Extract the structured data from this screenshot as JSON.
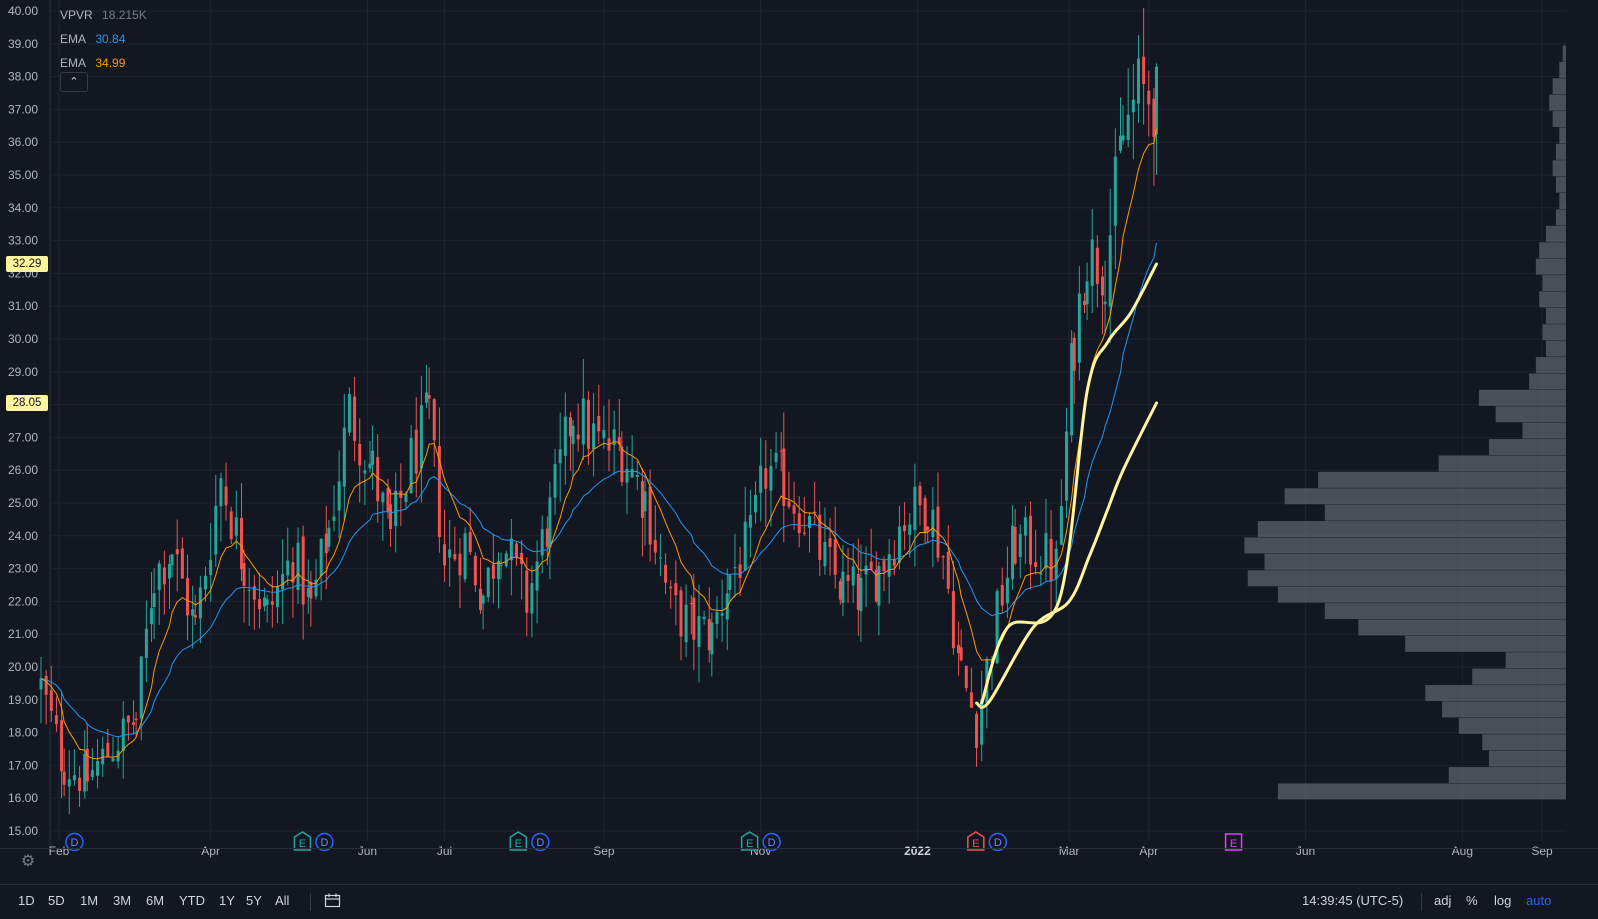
{
  "legend": {
    "vpvr": {
      "name": "VPVR",
      "value": "18.215K",
      "color": "#787b86"
    },
    "ema1": {
      "name": "EMA",
      "value": "30.84",
      "color": "#2196f3"
    },
    "ema2": {
      "name": "EMA",
      "value": "34.99",
      "color": "#ff9800"
    }
  },
  "collapse_icon": "chevron-up-icon",
  "badges": [
    {
      "value": "32.29",
      "price": 32.29
    },
    {
      "value": "28.05",
      "price": 28.05
    }
  ],
  "bottom_bar": {
    "ranges": [
      "1D",
      "5D",
      "1M",
      "3M",
      "6M",
      "YTD",
      "1Y",
      "5Y",
      "All"
    ],
    "time": "14:39:45 (UTC-5)",
    "controls": [
      "adj",
      "%",
      "log",
      "auto"
    ],
    "active_control": "auto"
  },
  "colors": {
    "background": "#131722",
    "up": "#26a69a",
    "down": "#ef5350",
    "ema_blue": "#2196f3",
    "ema_orange": "#ff9800",
    "highlight": "#fff59d",
    "volume_profile": "#787b86"
  },
  "chart_data": {
    "type": "candlestick",
    "ylim": [
      15.0,
      40.0
    ],
    "y_ticks": [
      "40.00",
      "39.00",
      "38.00",
      "37.00",
      "36.00",
      "35.00",
      "34.00",
      "33.00",
      "32.00",
      "31.00",
      "30.00",
      "29.00",
      "28.00",
      "27.00",
      "26.00",
      "25.00",
      "24.00",
      "23.00",
      "22.00",
      "21.00",
      "20.00",
      "19.00",
      "18.00",
      "17.00",
      "16.00",
      "15.00"
    ],
    "x_ticks": [
      {
        "label": "Feb",
        "date": "2021-02-01"
      },
      {
        "label": "Apr",
        "date": "2021-04-01"
      },
      {
        "label": "Jun",
        "date": "2021-06-01"
      },
      {
        "label": "Jul",
        "date": "2021-07-01"
      },
      {
        "label": "Sep",
        "date": "2021-09-01"
      },
      {
        "label": "Nov",
        "date": "2021-11-01"
      },
      {
        "label": "2022",
        "date": "2022-01-01"
      },
      {
        "label": "Mar",
        "date": "2022-03-01"
      },
      {
        "label": "Apr",
        "date": "2022-04-01"
      },
      {
        "label": "Jun",
        "date": "2022-06-01"
      },
      {
        "label": "Aug",
        "date": "2022-08-01"
      },
      {
        "label": "Sep",
        "date": "2022-09-01"
      }
    ],
    "price_path": [
      [
        "2021-01-25",
        19.4
      ],
      [
        "2021-02-03",
        17.0
      ],
      [
        "2021-02-12",
        16.6
      ],
      [
        "2021-02-22",
        17.6
      ],
      [
        "2021-03-03",
        18.4
      ],
      [
        "2021-03-10",
        22.8
      ],
      [
        "2021-03-17",
        23.6
      ],
      [
        "2021-03-26",
        21.2
      ],
      [
        "2021-04-05",
        25.8
      ],
      [
        "2021-04-14",
        23.2
      ],
      [
        "2021-04-23",
        21.6
      ],
      [
        "2021-05-03",
        23.4
      ],
      [
        "2021-05-10",
        21.8
      ],
      [
        "2021-05-17",
        24.2
      ],
      [
        "2021-05-25",
        27.8
      ],
      [
        "2021-06-03",
        26.0
      ],
      [
        "2021-06-10",
        23.9
      ],
      [
        "2021-06-18",
        26.3
      ],
      [
        "2021-06-25",
        27.6
      ],
      [
        "2021-07-01",
        23.2
      ],
      [
        "2021-07-09",
        23.8
      ],
      [
        "2021-07-16",
        22.2
      ],
      [
        "2021-07-23",
        24.0
      ],
      [
        "2021-08-02",
        22.0
      ],
      [
        "2021-08-11",
        24.6
      ],
      [
        "2021-08-20",
        27.8
      ],
      [
        "2021-08-30",
        26.8
      ],
      [
        "2021-09-08",
        26.6
      ],
      [
        "2021-09-17",
        25.2
      ],
      [
        "2021-09-27",
        21.8
      ],
      [
        "2021-10-06",
        21.2
      ],
      [
        "2021-10-13",
        21.0
      ],
      [
        "2021-10-20",
        22.8
      ],
      [
        "2021-10-28",
        23.8
      ],
      [
        "2021-11-03",
        26.0
      ],
      [
        "2021-11-10",
        25.6
      ],
      [
        "2021-11-18",
        24.6
      ],
      [
        "2021-11-26",
        23.2
      ],
      [
        "2021-12-03",
        22.4
      ],
      [
        "2021-12-10",
        22.2
      ],
      [
        "2021-12-17",
        23.0
      ],
      [
        "2021-12-27",
        24.6
      ],
      [
        "2022-01-05",
        25.0
      ],
      [
        "2022-01-11",
        23.4
      ],
      [
        "2022-01-18",
        19.8
      ],
      [
        "2022-01-24",
        18.3
      ],
      [
        "2022-02-01",
        21.6
      ],
      [
        "2022-02-08",
        23.8
      ],
      [
        "2022-02-16",
        23.6
      ],
      [
        "2022-02-24",
        23.0
      ],
      [
        "2022-03-03",
        30.0
      ],
      [
        "2022-03-08",
        32.6
      ],
      [
        "2022-03-15",
        32.2
      ],
      [
        "2022-03-22",
        36.2
      ],
      [
        "2022-03-28",
        37.6
      ],
      [
        "2022-04-04",
        37.2
      ]
    ],
    "series": [
      {
        "name": "EMA",
        "color": "#2196f3",
        "period": 50,
        "last": 30.84
      },
      {
        "name": "EMA",
        "color": "#ff9800",
        "period": 20,
        "last": 34.99
      }
    ],
    "highlight_lines": [
      {
        "label": "32.29",
        "points": [
          [
            "2022-01-26",
            18.9
          ],
          [
            "2022-02-05",
            21.2
          ],
          [
            "2022-02-25",
            22.0
          ],
          [
            "2022-03-08",
            28.4
          ],
          [
            "2022-03-16",
            29.9
          ],
          [
            "2022-03-25",
            30.8
          ],
          [
            "2022-04-04",
            32.29
          ]
        ]
      },
      {
        "label": "28.05",
        "points": [
          [
            "2022-01-24",
            18.9
          ],
          [
            "2022-01-29",
            18.95
          ],
          [
            "2022-02-15",
            21.2
          ],
          [
            "2022-03-01",
            22.0
          ],
          [
            "2022-03-09",
            23.4
          ],
          [
            "2022-03-16",
            24.8
          ],
          [
            "2022-03-22",
            26.0
          ],
          [
            "2022-04-04",
            28.05
          ]
        ]
      }
    ],
    "volume_profile": [
      [
        16.2,
        0.86
      ],
      [
        16.7,
        0.35
      ],
      [
        17.2,
        0.23
      ],
      [
        17.7,
        0.25
      ],
      [
        18.2,
        0.32
      ],
      [
        18.7,
        0.37
      ],
      [
        19.2,
        0.42
      ],
      [
        19.7,
        0.28
      ],
      [
        20.2,
        0.18
      ],
      [
        20.7,
        0.48
      ],
      [
        21.2,
        0.62
      ],
      [
        21.7,
        0.72
      ],
      [
        22.2,
        0.86
      ],
      [
        22.7,
        0.95
      ],
      [
        23.2,
        0.9
      ],
      [
        23.7,
        0.96
      ],
      [
        24.2,
        0.92
      ],
      [
        24.7,
        0.72
      ],
      [
        25.2,
        0.84
      ],
      [
        25.7,
        0.74
      ],
      [
        26.2,
        0.38
      ],
      [
        26.7,
        0.23
      ],
      [
        27.2,
        0.13
      ],
      [
        27.7,
        0.21
      ],
      [
        28.2,
        0.26
      ],
      [
        28.7,
        0.11
      ],
      [
        29.2,
        0.09
      ],
      [
        29.7,
        0.06
      ],
      [
        30.2,
        0.07
      ],
      [
        30.7,
        0.06
      ],
      [
        31.2,
        0.08
      ],
      [
        31.7,
        0.07
      ],
      [
        32.2,
        0.09
      ],
      [
        32.7,
        0.08
      ],
      [
        33.2,
        0.06
      ],
      [
        33.7,
        0.03
      ],
      [
        34.2,
        0.02
      ],
      [
        34.7,
        0.03
      ],
      [
        35.2,
        0.04
      ],
      [
        35.7,
        0.03
      ],
      [
        36.2,
        0.02
      ],
      [
        36.7,
        0.04
      ],
      [
        37.2,
        0.05
      ],
      [
        37.7,
        0.04
      ],
      [
        38.2,
        0.02
      ],
      [
        38.7,
        0.01
      ]
    ],
    "event_markers": [
      {
        "date": "2021-02-07",
        "labels": [
          "D"
        ]
      },
      {
        "date": "2021-05-11",
        "labels": [
          "E",
          "D"
        ]
      },
      {
        "date": "2021-08-03",
        "labels": [
          "E",
          "D"
        ]
      },
      {
        "date": "2021-11-01",
        "labels": [
          "E",
          "D"
        ]
      },
      {
        "date": "2022-01-28",
        "labels": [
          "E",
          "D"
        ]
      },
      {
        "date": "2022-05-04",
        "labels": [
          "E"
        ]
      }
    ]
  }
}
